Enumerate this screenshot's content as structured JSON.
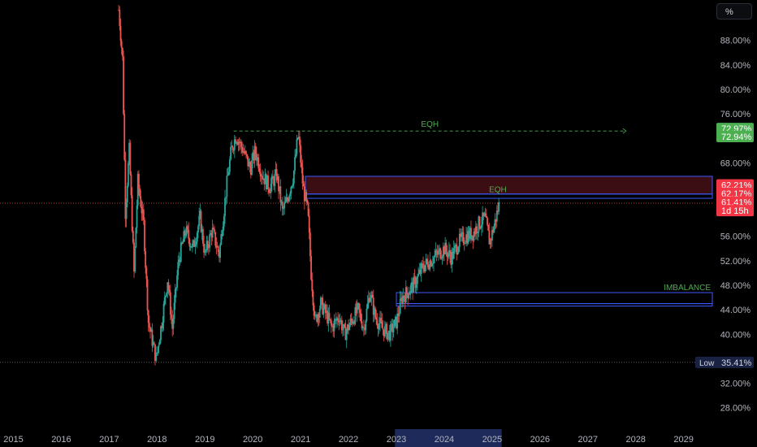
{
  "scale_button": {
    "label": "%"
  },
  "colors": {
    "background": "#000000",
    "up": "#26a69a",
    "down": "#ef5350",
    "zone_border": "#3d5afe",
    "zone_fill_red": "#6b1a24",
    "eqh_text": "#4caf50",
    "badge_green": "#4caf50",
    "badge_red": "#f23645",
    "axis_text": "#b2b5be",
    "x_highlight": "#1e2a5a"
  },
  "chart_data": {
    "type": "candlestick",
    "title": "",
    "xlabel": "",
    "ylabel": "",
    "x_range": [
      2014.72,
      2029.6
    ],
    "y_range": [
      24.5,
      94.6
    ],
    "x_ticks": [
      "2015",
      "2016",
      "2017",
      "2018",
      "2019",
      "2020",
      "2021",
      "2022",
      "2023",
      "2024",
      "2025",
      "2026",
      "2027",
      "2028",
      "2029"
    ],
    "x_tick_values": [
      2015,
      2016,
      2017,
      2018,
      2019,
      2020,
      2021,
      2022,
      2023,
      2024,
      2025,
      2026,
      2027,
      2028,
      2029
    ],
    "x_highlight_range": [
      2022.97,
      2025.2
    ],
    "y_ticks": [
      "28.00%",
      "32.00%",
      "40.00%",
      "44.00%",
      "48.00%",
      "52.00%",
      "56.00%",
      "68.00%",
      "72.00%",
      "76.00%",
      "80.00%",
      "84.00%",
      "88.00%"
    ],
    "y_tick_values": [
      28,
      32,
      40,
      44,
      48,
      52,
      56,
      68,
      72,
      76,
      80,
      84,
      88
    ],
    "price_path": [
      [
        2017.2,
        93
      ],
      [
        2017.28,
        85
      ],
      [
        2017.34,
        60
      ],
      [
        2017.42,
        70
      ],
      [
        2017.52,
        50
      ],
      [
        2017.6,
        65
      ],
      [
        2017.72,
        58
      ],
      [
        2017.82,
        42
      ],
      [
        2017.9,
        39
      ],
      [
        2017.98,
        36
      ],
      [
        2018.1,
        42
      ],
      [
        2018.22,
        49
      ],
      [
        2018.32,
        41
      ],
      [
        2018.45,
        52
      ],
      [
        2018.6,
        57
      ],
      [
        2018.75,
        54
      ],
      [
        2018.9,
        59
      ],
      [
        2019.0,
        53
      ],
      [
        2019.15,
        57
      ],
      [
        2019.3,
        53
      ],
      [
        2019.45,
        64
      ],
      [
        2019.55,
        70
      ],
      [
        2019.65,
        72.5
      ],
      [
        2019.8,
        70
      ],
      [
        2019.95,
        67
      ],
      [
        2020.05,
        70
      ],
      [
        2020.2,
        66
      ],
      [
        2020.35,
        64
      ],
      [
        2020.5,
        66
      ],
      [
        2020.62,
        60
      ],
      [
        2020.72,
        62
      ],
      [
        2020.85,
        66
      ],
      [
        2020.95,
        72.8
      ],
      [
        2021.05,
        64
      ],
      [
        2021.15,
        60
      ],
      [
        2021.22,
        50
      ],
      [
        2021.3,
        42
      ],
      [
        2021.42,
        45
      ],
      [
        2021.55,
        43
      ],
      [
        2021.65,
        41
      ],
      [
        2021.8,
        43
      ],
      [
        2021.92,
        40
      ],
      [
        2022.05,
        42
      ],
      [
        2022.2,
        44
      ],
      [
        2022.32,
        41
      ],
      [
        2022.45,
        47
      ],
      [
        2022.55,
        43
      ],
      [
        2022.7,
        41
      ],
      [
        2022.85,
        40
      ],
      [
        2023.0,
        42
      ],
      [
        2023.12,
        46
      ],
      [
        2023.25,
        47
      ],
      [
        2023.4,
        48.5
      ],
      [
        2023.55,
        51
      ],
      [
        2023.7,
        52
      ],
      [
        2023.85,
        53
      ],
      [
        2024.0,
        54
      ],
      [
        2024.15,
        52.5
      ],
      [
        2024.3,
        55
      ],
      [
        2024.45,
        56
      ],
      [
        2024.6,
        56.5
      ],
      [
        2024.72,
        58
      ],
      [
        2024.85,
        59
      ],
      [
        2024.95,
        55
      ],
      [
        2025.05,
        58
      ],
      [
        2025.15,
        61.41
      ]
    ],
    "annotations": [
      {
        "type": "eqh_line",
        "label": "EQH",
        "y": 73.2,
        "x_start": 2019.6,
        "x_end": 2027.8
      },
      {
        "type": "eqh_label",
        "label": "EQH",
        "x": 2025.12,
        "y": 63.2
      },
      {
        "type": "zone",
        "label": "",
        "x_start": 2021.1,
        "x_end": 2029.6,
        "y_low": 62.9,
        "y_high": 65.8,
        "fill": "red"
      },
      {
        "type": "zone",
        "label": "",
        "x_start": 2021.1,
        "x_end": 2029.6,
        "y_low": 62.2,
        "y_high": 62.9,
        "fill": "none"
      },
      {
        "type": "zone",
        "label": "IMBALANCE",
        "x_start": 2023.0,
        "x_end": 2029.6,
        "y_low": 45.0,
        "y_high": 46.8,
        "fill": "none"
      },
      {
        "type": "zone",
        "label": "",
        "x_start": 2023.0,
        "x_end": 2029.6,
        "y_low": 44.6,
        "y_high": 45.0,
        "fill": "none"
      }
    ],
    "current_price_line": 61.41,
    "low_line": 35.41,
    "price_labels": [
      {
        "text": "72.97%",
        "y": 73.6,
        "color": "green"
      },
      {
        "text": "72.94%",
        "y": 72.3,
        "color": "green"
      },
      {
        "text": "62.21%",
        "y": 64.4,
        "color": "red"
      },
      {
        "text": "62.17%",
        "y": 63.0,
        "color": "red"
      },
      {
        "text": "61.41%",
        "y": 61.6,
        "color": "red"
      },
      {
        "text": "1d 15h",
        "y": 60.2,
        "color": "red"
      }
    ],
    "low_label": {
      "tag": "Low",
      "value": "35.41%",
      "y": 35.41
    }
  }
}
